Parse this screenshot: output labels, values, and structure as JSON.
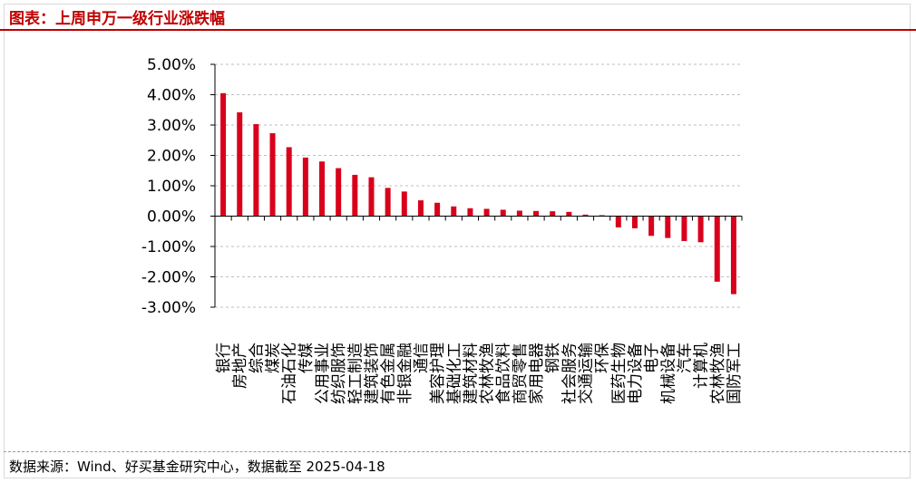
{
  "header": {
    "title": "图表：上周申万一级行业涨跌幅"
  },
  "footer": {
    "source": "数据来源：Wind、好买基金研究中心，数据截至 2025-04-18"
  },
  "colors": {
    "accent": "#c00000",
    "bar": "#d9001b",
    "grid": "#bfbfbf"
  },
  "chart_data": {
    "type": "bar",
    "title": "",
    "xlabel": "",
    "ylabel": "",
    "ylim": [
      -3,
      5
    ],
    "ytick_step": 1,
    "ytick_format": "percent_2dp",
    "grid": true,
    "legend": "none",
    "categories": [
      "银行",
      "房地产",
      "综合",
      "煤炭",
      "石油石化",
      "传媒",
      "公用事业",
      "纺织服饰",
      "轻工制造",
      "建筑装饰",
      "有色金属",
      "非银金融",
      "通信",
      "美容护理",
      "基础化工",
      "建筑材料",
      "农林牧渔",
      "食品饮料",
      "商贸零售",
      "家用电器",
      "钢铁",
      "社会服务",
      "交通运输",
      "环保",
      "医药生物",
      "电力设备",
      "电子",
      "机械设备",
      "汽车",
      "计算机",
      "农林牧渔",
      "国防军工"
    ],
    "tick_labels": [
      "银行",
      "房地产",
      "综合",
      "煤炭",
      "石油石化",
      "传媒",
      "公用事业",
      "纺织服饰",
      "轻工制造",
      "建筑装饰",
      "有色金属",
      "非银金融",
      "通信",
      "美容护理",
      "基础化工",
      "建筑材料",
      "农林牧渔",
      "食品饮料",
      "商贸零售",
      "家用电器",
      "钢铁",
      "社会服务",
      "交通运输",
      "环保",
      "医药生物",
      "电力设备",
      "电子",
      "机械设备",
      "汽车",
      "计算机",
      "农林牧渔",
      "国防军工"
    ],
    "series": [
      {
        "values": [
          4.05,
          3.42,
          3.03,
          2.73,
          2.27,
          1.93,
          1.8,
          1.58,
          1.36,
          1.28,
          0.93,
          0.81,
          0.52,
          0.44,
          0.32,
          0.26,
          0.24,
          0.21,
          0.18,
          0.17,
          0.16,
          0.14,
          0.05,
          0.03,
          -0.37,
          -0.4,
          -0.65,
          -0.72,
          -0.82,
          -0.86,
          -2.16,
          -2.57
        ]
      }
    ]
  }
}
